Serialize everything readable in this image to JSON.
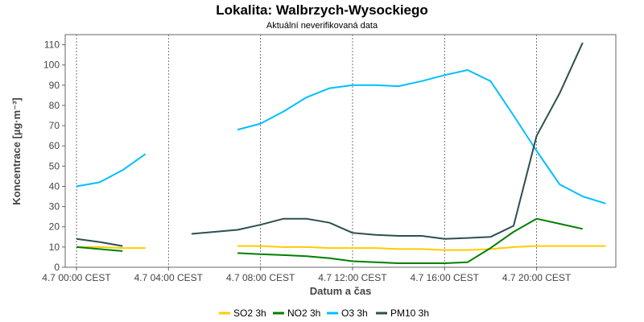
{
  "chart_data": {
    "type": "line",
    "title": "Lokalita: Walbrzych-Wysockiego",
    "subtitle": "Aktuální neverifikovaná data",
    "xlabel": "Datum a čas",
    "ylabel": "Koncentrace [µg·m⁻³]",
    "ylim": [
      0,
      115
    ],
    "yticks": [
      0,
      10,
      20,
      30,
      40,
      50,
      60,
      70,
      80,
      90,
      100,
      110
    ],
    "xlim": [
      "4.7 00:00",
      "5.7 00:00"
    ],
    "xticks": [
      {
        "hour": 0,
        "label": "4.7 00:00 CEST"
      },
      {
        "hour": 4,
        "label": "4.7 04:00 CEST"
      },
      {
        "hour": 8,
        "label": "4.7 08:00 CEST"
      },
      {
        "hour": 12,
        "label": "4.7 12:00 CEST"
      },
      {
        "hour": 16,
        "label": "4.7 16:00 CEST"
      },
      {
        "hour": 20,
        "label": "4.7 20:00 CEST"
      }
    ],
    "grid": "vertical-dashed",
    "legend": "bottom",
    "series": [
      {
        "name": "SO2 3h",
        "color": "#ffcc00",
        "segments": [
          [
            [
              0,
              10
            ],
            [
              1,
              10
            ],
            [
              2,
              9.5
            ],
            [
              3,
              9.5
            ]
          ],
          [
            [
              7,
              10.5
            ],
            [
              8,
              10.5
            ],
            [
              9,
              10
            ],
            [
              10,
              10
            ],
            [
              11,
              9.5
            ],
            [
              12,
              9.5
            ],
            [
              13,
              9.5
            ],
            [
              14,
              9
            ],
            [
              15,
              9
            ],
            [
              16,
              8.5
            ],
            [
              17,
              8.5
            ],
            [
              18,
              9
            ],
            [
              19,
              10
            ],
            [
              20,
              10.5
            ],
            [
              21,
              10.5
            ],
            [
              22,
              10.5
            ],
            [
              23,
              10.5
            ]
          ]
        ]
      },
      {
        "name": "NO2 3h",
        "color": "#008000",
        "segments": [
          [
            [
              0,
              10
            ],
            [
              1,
              9
            ],
            [
              2,
              8
            ]
          ],
          [
            [
              7,
              7
            ],
            [
              8,
              6.5
            ],
            [
              9,
              6
            ],
            [
              10,
              5.5
            ],
            [
              11,
              4.5
            ],
            [
              12,
              3
            ],
            [
              13,
              2.5
            ],
            [
              14,
              2
            ],
            [
              15,
              2
            ],
            [
              16,
              2
            ],
            [
              17,
              2.5
            ],
            [
              18,
              9.5
            ],
            [
              19,
              17.5
            ],
            [
              20,
              24
            ],
            [
              21,
              21.5
            ],
            [
              22,
              19
            ]
          ]
        ]
      },
      {
        "name": "O3 3h",
        "color": "#00bfff",
        "segments": [
          [
            [
              0,
              40
            ],
            [
              1,
              42
            ],
            [
              2,
              48
            ],
            [
              3,
              56
            ]
          ],
          [
            [
              7,
              68
            ],
            [
              8,
              71
            ],
            [
              9,
              77
            ],
            [
              10,
              84
            ],
            [
              11,
              88.5
            ],
            [
              12,
              90
            ],
            [
              13,
              90
            ],
            [
              14,
              89.5
            ],
            [
              15,
              92
            ],
            [
              16,
              95
            ],
            [
              17,
              97.5
            ],
            [
              18,
              92
            ],
            [
              19,
              75
            ],
            [
              20,
              57.5
            ],
            [
              21,
              41
            ],
            [
              22,
              35
            ],
            [
              23,
              31.5
            ]
          ]
        ]
      },
      {
        "name": "PM10 3h",
        "color": "#2f4f4f",
        "segments": [
          [
            [
              0,
              14
            ],
            [
              1,
              12.5
            ],
            [
              2,
              10.5
            ]
          ],
          [
            [
              5,
              16.5
            ],
            [
              6,
              17.5
            ],
            [
              7,
              18.5
            ],
            [
              8,
              21
            ],
            [
              9,
              24
            ],
            [
              10,
              24
            ],
            [
              11,
              22
            ],
            [
              12,
              17
            ],
            [
              13,
              16
            ],
            [
              14,
              15.5
            ],
            [
              15,
              15.5
            ],
            [
              16,
              14
            ],
            [
              17,
              14.5
            ],
            [
              18,
              15
            ],
            [
              19,
              20.5
            ],
            [
              20,
              65
            ],
            [
              21,
              86
            ],
            [
              22,
              111
            ]
          ]
        ]
      }
    ]
  }
}
